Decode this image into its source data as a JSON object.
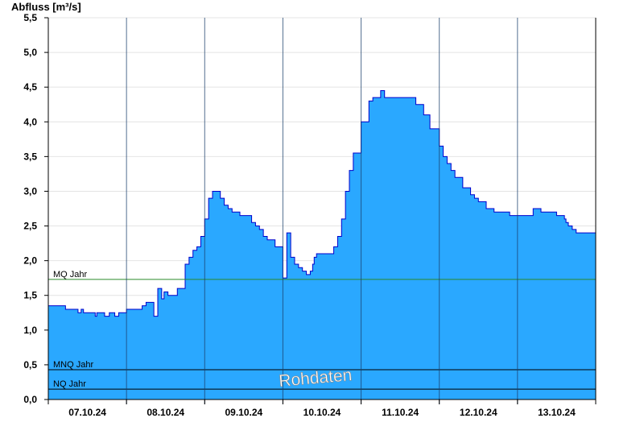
{
  "chart_data": {
    "type": "area",
    "ylabel": "Abfluss [m³/s]",
    "ylim": [
      0,
      5.5
    ],
    "yticks": [
      0,
      0.5,
      1,
      1.5,
      2,
      2.5,
      3,
      3.5,
      4,
      4.5,
      5,
      5.5
    ],
    "ytick_labels": [
      "0,0",
      "0,5",
      "1,0",
      "1,5",
      "2,0",
      "2,5",
      "3,0",
      "3,5",
      "4,0",
      "4,5",
      "5,0",
      "5,5"
    ],
    "x_unit": "days from 07.10.24 00:00",
    "xlim": [
      0,
      7
    ],
    "xticks": [
      0.5,
      1.5,
      2.5,
      3.5,
      4.5,
      5.5,
      6.5
    ],
    "xtick_labels": [
      "07.10.24",
      "08.10.24",
      "09.10.24",
      "10.10.24",
      "11.10.24",
      "12.10.24",
      "13.10.24"
    ],
    "day_dividers": [
      1,
      2,
      3,
      4,
      5,
      6
    ],
    "series": [
      {
        "color": "#2aa8ff",
        "line_color": "#0000cc",
        "x": [
          0,
          0.2,
          0.22,
          0.35,
          0.38,
          0.42,
          0.45,
          0.5,
          0.6,
          0.62,
          0.7,
          0.72,
          0.78,
          0.8,
          0.85,
          0.9,
          0.95,
          1.0,
          1.05,
          1.1,
          1.2,
          1.25,
          1.3,
          1.35,
          1.4,
          1.45,
          1.48,
          1.5,
          1.53,
          1.57,
          1.6,
          1.65,
          1.75,
          1.8,
          1.85,
          1.9,
          1.95,
          2.0,
          2.05,
          2.1,
          2.15,
          2.2,
          2.25,
          2.3,
          2.35,
          2.4,
          2.45,
          2.5,
          2.55,
          2.6,
          2.65,
          2.7,
          2.75,
          2.8,
          2.9,
          3.0,
          3.05,
          3.1,
          3.15,
          3.2,
          3.25,
          3.3,
          3.35,
          3.38,
          3.4,
          3.43,
          3.47,
          3.5,
          3.55,
          3.65,
          3.7,
          3.75,
          3.8,
          3.85,
          3.9,
          4.0,
          4.1,
          4.15,
          4.2,
          4.25,
          4.3,
          4.4,
          4.5,
          4.6,
          4.7,
          4.8,
          4.88,
          5.0,
          5.05,
          5.1,
          5.15,
          5.2,
          5.3,
          5.4,
          5.45,
          5.5,
          5.6,
          5.7,
          5.8,
          5.9,
          6.0,
          6.1,
          6.2,
          6.3,
          6.4,
          6.5,
          6.6,
          6.62,
          6.65,
          6.7,
          6.75,
          6.8,
          6.85,
          6.9,
          7.0
        ],
        "values": [
          1.35,
          1.35,
          1.3,
          1.3,
          1.25,
          1.3,
          1.25,
          1.25,
          1.2,
          1.25,
          1.25,
          1.2,
          1.25,
          1.25,
          1.2,
          1.25,
          1.25,
          1.3,
          1.3,
          1.3,
          1.35,
          1.4,
          1.4,
          1.2,
          1.6,
          1.45,
          1.55,
          1.55,
          1.5,
          1.5,
          1.5,
          1.6,
          1.95,
          2.05,
          2.15,
          2.2,
          2.35,
          2.6,
          2.9,
          3.0,
          3.0,
          2.9,
          2.8,
          2.75,
          2.7,
          2.7,
          2.65,
          2.65,
          2.65,
          2.55,
          2.5,
          2.45,
          2.35,
          2.3,
          2.2,
          1.75,
          2.4,
          2.05,
          1.95,
          1.9,
          1.85,
          1.8,
          1.85,
          1.95,
          2.05,
          2.1,
          2.1,
          2.1,
          2.1,
          2.2,
          2.35,
          2.6,
          3.0,
          3.3,
          3.55,
          4.0,
          4.3,
          4.35,
          4.35,
          4.45,
          4.35,
          4.35,
          4.35,
          4.35,
          4.25,
          4.1,
          3.9,
          3.65,
          3.5,
          3.4,
          3.3,
          3.2,
          3.05,
          2.95,
          2.9,
          2.85,
          2.75,
          2.7,
          2.7,
          2.65,
          2.65,
          2.65,
          2.75,
          2.7,
          2.7,
          2.65,
          2.6,
          2.55,
          2.5,
          2.45,
          2.4,
          2.4,
          2.4,
          2.4,
          2.4
        ]
      }
    ],
    "reference_lines": [
      {
        "label": "MQ Jahr",
        "value": 1.73,
        "color": "#2a8a2a"
      },
      {
        "label": "MNQ Jahr",
        "value": 0.43,
        "color": "#000000"
      },
      {
        "label": "NQ Jahr",
        "value": 0.15,
        "color": "#000000"
      }
    ],
    "grid": "horizontal",
    "watermark": "Rohdaten"
  }
}
